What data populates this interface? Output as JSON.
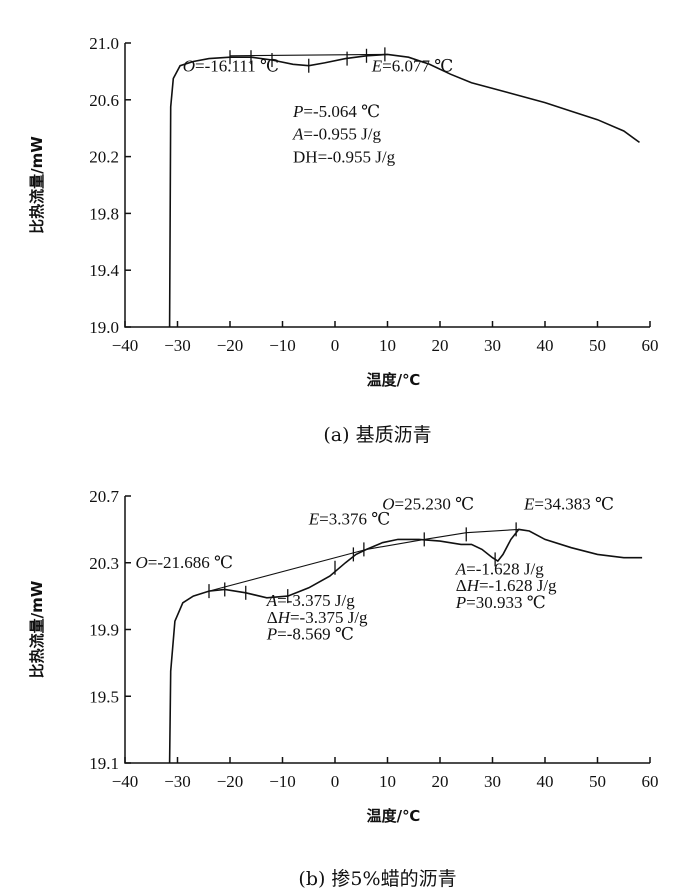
{
  "chart_data": [
    {
      "type": "line",
      "caption": "(a) 基质沥青",
      "xlabel": "温度/℃",
      "ylabel": "比热流量/mW",
      "xlim": [
        -40,
        60
      ],
      "ylim": [
        19.0,
        21.0
      ],
      "x_ticks": [
        -40,
        -30,
        -20,
        -10,
        0,
        10,
        20,
        30,
        40,
        50,
        60
      ],
      "y_ticks": [
        "19.0",
        "19.4",
        "19.8",
        "20.2",
        "20.6",
        "21.0"
      ],
      "series": [
        {
          "points": [
            [
              -31.5,
              19.0
            ],
            [
              -31.3,
              20.55
            ],
            [
              -30.8,
              20.75
            ],
            [
              -29.5,
              20.84
            ],
            [
              -27,
              20.87
            ],
            [
              -24,
              20.89
            ],
            [
              -20,
              20.9
            ],
            [
              -16,
              20.9
            ],
            [
              -12,
              20.88
            ],
            [
              -8,
              20.85
            ],
            [
              -5,
              20.84
            ],
            [
              -2,
              20.86
            ],
            [
              2,
              20.89
            ],
            [
              6,
              20.91
            ],
            [
              10,
              20.92
            ],
            [
              14,
              20.9
            ],
            [
              18,
              20.85
            ],
            [
              22,
              20.78
            ],
            [
              26,
              20.72
            ],
            [
              30,
              20.68
            ],
            [
              35,
              20.63
            ],
            [
              40,
              20.58
            ],
            [
              45,
              20.52
            ],
            [
              50,
              20.46
            ],
            [
              55,
              20.38
            ],
            [
              58,
              20.3
            ]
          ]
        }
      ],
      "baseline": [
        [
          -20,
          20.91
        ],
        [
          10,
          20.92
        ]
      ],
      "markers": [
        [
          -20,
          20.9
        ],
        [
          -16,
          20.9
        ],
        [
          -12,
          20.88
        ],
        [
          -5,
          20.84
        ],
        [
          2.3,
          20.89
        ],
        [
          6,
          20.91
        ],
        [
          9.5,
          20.92
        ]
      ],
      "annotations": [
        {
          "text": "O=-16.111 ℃",
          "x": -29,
          "y": 20.8
        },
        {
          "text": "E=6.077 ℃",
          "x": 7,
          "y": 20.8
        },
        {
          "text": "P=-5.064 ℃",
          "x": -8,
          "y": 20.48
        },
        {
          "text": "A=-0.955 J/g",
          "x": -8,
          "y": 20.32
        },
        {
          "text": "DH=-0.955 J/g",
          "x": -8,
          "y": 20.16
        }
      ]
    },
    {
      "type": "line",
      "caption": "(b) 掺5%蜡的沥青",
      "xlabel": "温度/℃",
      "ylabel": "比热流量/mW",
      "xlim": [
        -40,
        60
      ],
      "ylim": [
        19.1,
        20.7
      ],
      "x_ticks": [
        -40,
        -30,
        -20,
        -10,
        0,
        10,
        20,
        30,
        40,
        50,
        60
      ],
      "y_ticks": [
        "19.1",
        "19.5",
        "19.9",
        "20.3",
        "20.7"
      ],
      "series": [
        {
          "points": [
            [
              -31.5,
              19.1
            ],
            [
              -31.3,
              19.65
            ],
            [
              -30.5,
              19.95
            ],
            [
              -29,
              20.06
            ],
            [
              -27,
              20.1
            ],
            [
              -24,
              20.13
            ],
            [
              -21,
              20.14
            ],
            [
              -17,
              20.12
            ],
            [
              -13,
              20.09
            ],
            [
              -9,
              20.1
            ],
            [
              -5,
              20.15
            ],
            [
              -1,
              20.22
            ],
            [
              2,
              20.3
            ],
            [
              4,
              20.35
            ],
            [
              6,
              20.38
            ],
            [
              9,
              20.42
            ],
            [
              12,
              20.44
            ],
            [
              16,
              20.44
            ],
            [
              20,
              20.43
            ],
            [
              24,
              20.41
            ],
            [
              26,
              20.41
            ],
            [
              28,
              20.38
            ],
            [
              30,
              20.33
            ],
            [
              31,
              20.31
            ],
            [
              32,
              20.35
            ],
            [
              33.5,
              20.44
            ],
            [
              35,
              20.5
            ],
            [
              37,
              20.49
            ],
            [
              40,
              20.44
            ],
            [
              45,
              20.39
            ],
            [
              50,
              20.35
            ],
            [
              55,
              20.33
            ],
            [
              58.5,
              20.33
            ]
          ]
        }
      ],
      "baseline": [
        [
          -24,
          20.13
        ],
        [
          6,
          20.38
        ],
        [
          17,
          20.44
        ],
        [
          25,
          20.48
        ],
        [
          35,
          20.5
        ]
      ],
      "markers": [
        [
          -24,
          20.13
        ],
        [
          -21,
          20.14
        ],
        [
          -17,
          20.12
        ],
        [
          -9,
          20.1
        ],
        [
          0,
          20.27
        ],
        [
          3.5,
          20.35
        ],
        [
          5.5,
          20.38
        ],
        [
          17,
          20.44
        ],
        [
          25,
          20.47
        ],
        [
          30.5,
          20.32
        ],
        [
          34.5,
          20.5
        ]
      ],
      "annotations": [
        {
          "text": "O=-21.686 ℃",
          "x": -38,
          "y": 20.27
        },
        {
          "text": "E=3.376 ℃",
          "x": -5,
          "y": 20.53
        },
        {
          "text": "O=25.230 ℃",
          "x": 9,
          "y": 20.62
        },
        {
          "text": "E=34.383 ℃",
          "x": 36,
          "y": 20.62
        },
        {
          "text": "A=-3.375 J/g",
          "x": -13,
          "y": 20.04
        },
        {
          "text": "ΔH=-3.375 J/g",
          "x": -13,
          "y": 19.94
        },
        {
          "text": "P=-8.569 ℃",
          "x": -13,
          "y": 19.84
        },
        {
          "text": "A=-1.628 J/g",
          "x": 23,
          "y": 20.23
        },
        {
          "text": "ΔH=-1.628 J/g",
          "x": 23,
          "y": 20.13
        },
        {
          "text": "P=30.933 ℃",
          "x": 23,
          "y": 20.03
        }
      ]
    }
  ]
}
